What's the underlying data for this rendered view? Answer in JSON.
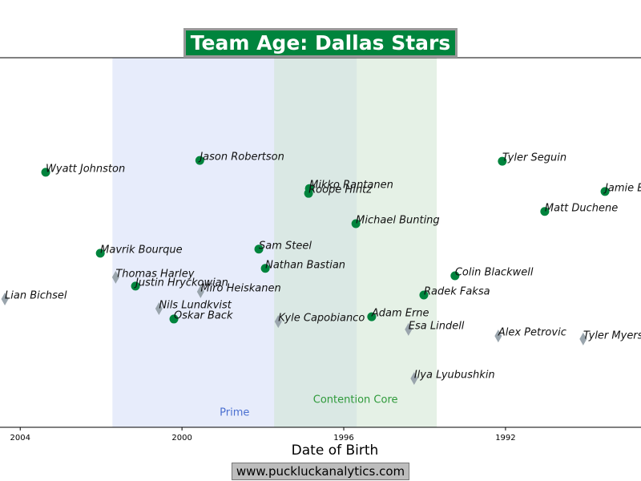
{
  "chart_data": {
    "type": "scatter",
    "title": "Team Age: Dallas Stars",
    "xlabel": "Date of Birth",
    "footer": "www.puckluckanalytics.com",
    "xlim": [
      2004.5,
      1988.65
    ],
    "xticks": [
      2004,
      2000,
      1996,
      1992
    ],
    "ylim": [
      0,
      100
    ],
    "bands": [
      {
        "label": "Prime",
        "from": 2001.72,
        "to": 1995.68,
        "color": "#d4dcf7",
        "text_color": "#4a6fd0"
      },
      {
        "label": "Contention Core",
        "from": 1997.72,
        "to": 1993.7,
        "color": "#cfe6d2",
        "text_color": "#2e9a3a"
      }
    ],
    "series": [
      {
        "color": "#00843d",
        "marker": "circle",
        "labels": [
          "Wyatt Johnston",
          "Jason Robertson",
          "Mikko Rantanen",
          "Roope Hintz",
          "Michael Bunting",
          "Tyler Seguin",
          "Jamie Benn",
          "Matt Duchene",
          "Mavrik Bourque",
          "Sam Steel",
          "Nathan Bastian",
          "Colin Blackwell",
          "Justin Hryckowian",
          "Radek Faksa",
          "Adam Erne",
          "Oskar Back"
        ],
        "x": [
          2003.37,
          1999.56,
          1996.85,
          1996.87,
          1995.7,
          1992.08,
          1989.54,
          1991.03,
          2002.02,
          1998.1,
          1997.94,
          1993.25,
          2001.15,
          1994.02,
          1995.31,
          2000.2
        ],
        "y": [
          69.0,
          72.2,
          64.6,
          63.3,
          55.1,
          72.0,
          63.8,
          58.4,
          47.1,
          48.2,
          43.0,
          41.0,
          38.2,
          35.8,
          29.9,
          29.3
        ]
      },
      {
        "color": "#9aa5ad",
        "marker": "diamond",
        "labels": [
          "Lian Bichsel",
          "Thomas Harley",
          "Miro Heiskanen",
          "Nils Lundkvist",
          "Kyle Capobianco",
          "Esa Lindell",
          "Alex Petrovic",
          "Tyler Myers",
          "Ilya Lyubushkin"
        ],
        "x": [
          2004.38,
          2001.64,
          1999.54,
          2000.57,
          1997.62,
          1994.4,
          1992.18,
          1990.08,
          1994.26
        ],
        "y": [
          34.7,
          40.6,
          36.7,
          32.1,
          28.6,
          26.5,
          24.7,
          23.9,
          13.2
        ]
      }
    ]
  }
}
